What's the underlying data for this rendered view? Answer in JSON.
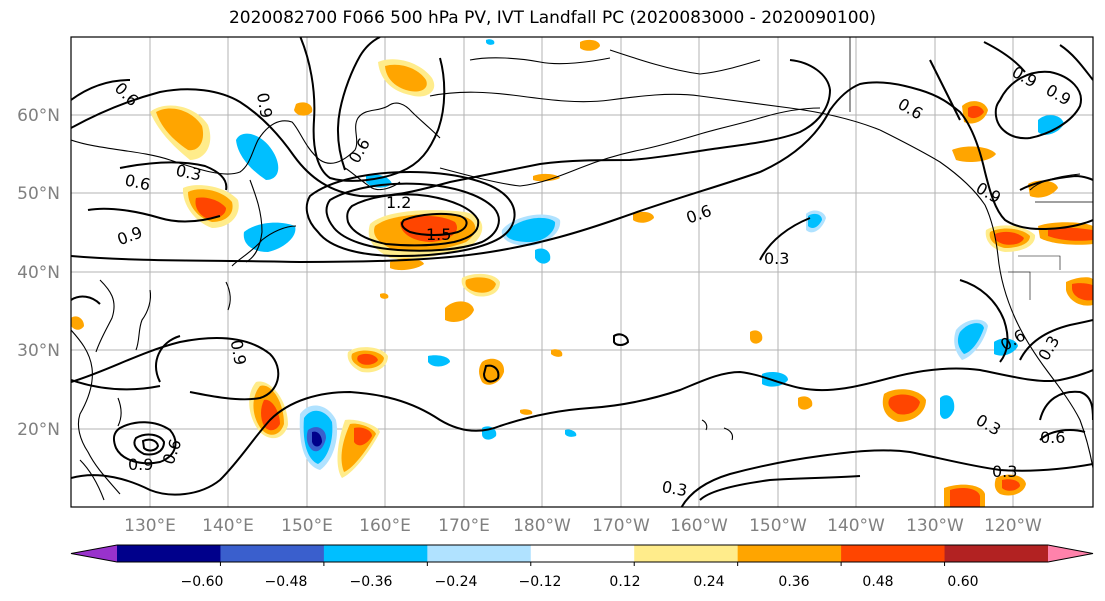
{
  "title": "2020082700 F066 500 hPa PV, IVT Landfall PC (2020083000 - 2020090100)",
  "map": {
    "lat_labels": [
      "60°N",
      "50°N",
      "40°N",
      "30°N",
      "20°N"
    ],
    "lon_labels": [
      "130°E",
      "140°E",
      "150°E",
      "160°E",
      "170°E",
      "180°W",
      "170°W",
      "160°W",
      "150°W",
      "140°W",
      "130°W",
      "120°W"
    ],
    "contour_labels": [
      "0.6",
      "0.9",
      "0.3",
      "0.6",
      "0.9",
      "0.6",
      "1.2",
      "1.5",
      "0.6",
      "0.3",
      "0.6",
      "0.9",
      "0.9",
      "0.6",
      "0.9",
      "0.9",
      "0.3",
      "0.3",
      "0.6",
      "0.3",
      "0.3",
      "0.9",
      "0.6"
    ]
  },
  "colorbar": {
    "ticks": [
      "−0.60",
      "−0.48",
      "−0.36",
      "−0.24",
      "−0.12",
      "0.12",
      "0.24",
      "0.36",
      "0.48",
      "0.60"
    ],
    "colors": [
      "#9932cc",
      "#00008b",
      "#3a5fcd",
      "#00bfff",
      "#b0e2ff",
      "#ffffff",
      "#ffec8b",
      "#ffa500",
      "#ff4500",
      "#b22222",
      "#ff82ab"
    ]
  }
}
